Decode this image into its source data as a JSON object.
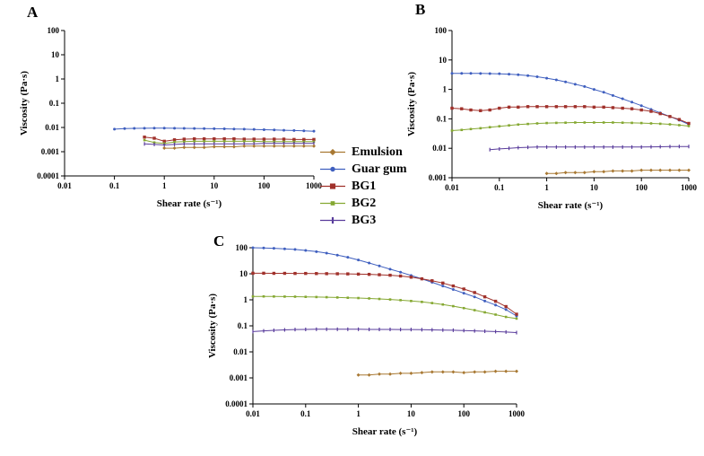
{
  "figure": {
    "background": "#ffffff",
    "panels": [
      {
        "label": "A"
      },
      {
        "label": "B"
      },
      {
        "label": "C"
      }
    ]
  },
  "legend": {
    "entries": [
      {
        "label": "Emulsion",
        "color": "#a87832",
        "marker": "diamond"
      },
      {
        "label": "Guar gum",
        "color": "#3f5fbf",
        "marker": "circle"
      },
      {
        "label": "BG1",
        "color": "#a0312b",
        "marker": "square"
      },
      {
        "label": "BG2",
        "color": "#85a832",
        "marker": "square-small"
      },
      {
        "label": "BG3",
        "color": "#5a3d9c",
        "marker": "dash"
      }
    ]
  },
  "chart_data": [
    {
      "type": "line",
      "panel": "A",
      "title": "",
      "xlabel": "Shear rate (s⁻¹)",
      "ylabel": "Viscosity (Pa·s)",
      "xscale": "log",
      "yscale": "log",
      "xlim": [
        0.01,
        1000
      ],
      "ylim": [
        0.0001,
        100
      ],
      "grid": false,
      "xticks": [
        0.01,
        0.1,
        1,
        10,
        100,
        1000
      ],
      "xtick_labels": [
        "0.01",
        "0.1",
        "1",
        "10",
        "100",
        "1000"
      ],
      "yticks": [
        0.0001,
        0.001,
        0.01,
        0.1,
        1,
        10,
        100
      ],
      "ytick_labels": [
        "0.0001",
        "0.001",
        "0.01",
        "0.1",
        "1",
        "10",
        "100"
      ],
      "series": [
        {
          "name": "Guar gum",
          "x": [
            0.1,
            0.16,
            0.25,
            0.4,
            0.63,
            1,
            1.6,
            2.5,
            4,
            6.3,
            10,
            16,
            25,
            40,
            63,
            100,
            160,
            250,
            400,
            630,
            1000
          ],
          "y": [
            0.0085,
            0.009,
            0.0092,
            0.0093,
            0.0094,
            0.0094,
            0.0093,
            0.0092,
            0.0091,
            0.009,
            0.0089,
            0.0088,
            0.0086,
            0.0085,
            0.0083,
            0.0081,
            0.0079,
            0.0077,
            0.0075,
            0.0073,
            0.007
          ]
        },
        {
          "name": "BG1",
          "x": [
            0.4,
            0.63,
            1,
            1.6,
            2.5,
            4,
            6.3,
            10,
            16,
            25,
            40,
            63,
            100,
            160,
            250,
            400,
            630,
            1000
          ],
          "y": [
            0.004,
            0.0036,
            0.0027,
            0.0031,
            0.0033,
            0.0034,
            0.0034,
            0.0034,
            0.0034,
            0.0034,
            0.0033,
            0.0033,
            0.0033,
            0.0033,
            0.0033,
            0.0032,
            0.0032,
            0.0032
          ]
        },
        {
          "name": "BG2",
          "x": [
            0.4,
            0.63,
            1,
            1.6,
            2.5,
            4,
            6.3,
            10,
            16,
            25,
            40,
            63,
            100,
            160,
            250,
            400,
            630,
            1000
          ],
          "y": [
            0.003,
            0.0024,
            0.0022,
            0.0025,
            0.0026,
            0.0027,
            0.0027,
            0.0027,
            0.0027,
            0.0027,
            0.0027,
            0.0027,
            0.0026,
            0.0026,
            0.0026,
            0.0026,
            0.0026,
            0.0026
          ]
        },
        {
          "name": "BG3",
          "x": [
            0.4,
            0.63,
            1,
            1.6,
            2.5,
            4,
            6.3,
            10,
            16,
            25,
            40,
            63,
            100,
            160,
            250,
            400,
            630,
            1000
          ],
          "y": [
            0.0021,
            0.002,
            0.0019,
            0.002,
            0.0021,
            0.0021,
            0.0021,
            0.0021,
            0.0021,
            0.0021,
            0.0021,
            0.0021,
            0.0022,
            0.0022,
            0.0022,
            0.0022,
            0.0022,
            0.0022
          ]
        },
        {
          "name": "Emulsion",
          "x": [
            1,
            1.6,
            2.5,
            4,
            6.3,
            10,
            16,
            25,
            40,
            63,
            100,
            160,
            250,
            400,
            630,
            1000
          ],
          "y": [
            0.0014,
            0.0014,
            0.0015,
            0.0015,
            0.0015,
            0.0016,
            0.0016,
            0.0016,
            0.0017,
            0.0017,
            0.0017,
            0.0017,
            0.0017,
            0.0017,
            0.0017,
            0.0017
          ]
        }
      ]
    },
    {
      "type": "line",
      "panel": "B",
      "title": "",
      "xlabel": "Shear rate (s⁻¹)",
      "ylabel": "Viscosity (Pa·s)",
      "xscale": "log",
      "yscale": "log",
      "xlim": [
        0.01,
        1000
      ],
      "ylim": [
        0.001,
        100
      ],
      "grid": false,
      "xticks": [
        0.01,
        0.1,
        1,
        10,
        100,
        1000
      ],
      "xtick_labels": [
        "0.01",
        "0.1",
        "1",
        "10",
        "100",
        "1000"
      ],
      "yticks": [
        0.001,
        0.01,
        0.1,
        1,
        10,
        100
      ],
      "ytick_labels": [
        "0.001",
        "0.01",
        "0.1",
        "1",
        "10",
        "100"
      ],
      "series": [
        {
          "name": "Guar gum",
          "x": [
            0.01,
            0.016,
            0.025,
            0.04,
            0.063,
            0.1,
            0.16,
            0.25,
            0.4,
            0.63,
            1,
            1.6,
            2.5,
            4,
            6.3,
            10,
            16,
            25,
            40,
            63,
            100,
            160,
            250,
            400,
            630,
            1000
          ],
          "y": [
            3.5,
            3.5,
            3.5,
            3.48,
            3.45,
            3.4,
            3.3,
            3.15,
            2.95,
            2.7,
            2.4,
            2.1,
            1.8,
            1.5,
            1.25,
            1.0,
            0.8,
            0.62,
            0.48,
            0.37,
            0.28,
            0.21,
            0.16,
            0.12,
            0.09,
            0.065
          ]
        },
        {
          "name": "BG1",
          "x": [
            0.01,
            0.016,
            0.025,
            0.04,
            0.063,
            0.1,
            0.16,
            0.25,
            0.4,
            0.63,
            1,
            1.6,
            2.5,
            4,
            6.3,
            10,
            16,
            25,
            40,
            63,
            100,
            160,
            250,
            400,
            630,
            1000
          ],
          "y": [
            0.23,
            0.22,
            0.2,
            0.19,
            0.2,
            0.23,
            0.25,
            0.25,
            0.26,
            0.26,
            0.26,
            0.26,
            0.26,
            0.26,
            0.26,
            0.25,
            0.25,
            0.24,
            0.23,
            0.22,
            0.2,
            0.18,
            0.15,
            0.12,
            0.095,
            0.07
          ]
        },
        {
          "name": "BG2",
          "x": [
            0.01,
            0.016,
            0.025,
            0.04,
            0.063,
            0.1,
            0.16,
            0.25,
            0.4,
            0.63,
            1,
            1.6,
            2.5,
            4,
            6.3,
            10,
            16,
            25,
            40,
            63,
            100,
            160,
            250,
            400,
            630,
            1000
          ],
          "y": [
            0.04,
            0.042,
            0.045,
            0.048,
            0.052,
            0.056,
            0.06,
            0.064,
            0.067,
            0.07,
            0.072,
            0.073,
            0.074,
            0.075,
            0.075,
            0.075,
            0.075,
            0.075,
            0.074,
            0.073,
            0.072,
            0.07,
            0.068,
            0.065,
            0.061,
            0.057
          ]
        },
        {
          "name": "BG3",
          "x": [
            0.063,
            0.1,
            0.16,
            0.25,
            0.4,
            0.63,
            1,
            1.6,
            2.5,
            4,
            6.3,
            10,
            16,
            25,
            40,
            63,
            100,
            160,
            250,
            400,
            630,
            1000
          ],
          "y": [
            0.009,
            0.0095,
            0.01,
            0.0105,
            0.0108,
            0.011,
            0.011,
            0.011,
            0.011,
            0.011,
            0.011,
            0.011,
            0.011,
            0.011,
            0.011,
            0.011,
            0.011,
            0.0112,
            0.0113,
            0.0114,
            0.0115,
            0.0115
          ]
        },
        {
          "name": "Emulsion",
          "x": [
            1,
            1.6,
            2.5,
            4,
            6.3,
            10,
            16,
            25,
            40,
            63,
            100,
            160,
            250,
            400,
            630,
            1000
          ],
          "y": [
            0.0014,
            0.0014,
            0.0015,
            0.0015,
            0.0015,
            0.0016,
            0.0016,
            0.0017,
            0.0017,
            0.0017,
            0.0018,
            0.0018,
            0.0018,
            0.0018,
            0.0018,
            0.0018
          ]
        }
      ]
    },
    {
      "type": "line",
      "panel": "C",
      "title": "",
      "xlabel": "Shear rate (s⁻¹)",
      "ylabel": "Viscosity (Pa·s)",
      "xscale": "log",
      "yscale": "log",
      "xlim": [
        0.01,
        1000
      ],
      "ylim": [
        0.0001,
        100
      ],
      "grid": false,
      "xticks": [
        0.01,
        0.1,
        1,
        10,
        100,
        1000
      ],
      "xtick_labels": [
        "0.01",
        "0.1",
        "1",
        "10",
        "100",
        "1000"
      ],
      "yticks": [
        0.0001,
        0.001,
        0.01,
        0.1,
        1,
        10,
        100
      ],
      "ytick_labels": [
        "0.0001",
        "0.001",
        "0.01",
        "0.1",
        "1",
        "10",
        "100"
      ],
      "series": [
        {
          "name": "Guar gum",
          "x": [
            0.01,
            0.016,
            0.025,
            0.04,
            0.063,
            0.1,
            0.16,
            0.25,
            0.4,
            0.63,
            1,
            1.6,
            2.5,
            4,
            6.3,
            10,
            16,
            25,
            40,
            63,
            100,
            160,
            250,
            400,
            630,
            1000
          ],
          "y": [
            100,
            98,
            95,
            91,
            86,
            79,
            71,
            62,
            52,
            43,
            34,
            26,
            20,
            15,
            11.5,
            8.6,
            6.4,
            4.7,
            3.4,
            2.5,
            1.8,
            1.3,
            0.9,
            0.63,
            0.42,
            0.24
          ]
        },
        {
          "name": "BG1",
          "x": [
            0.01,
            0.016,
            0.025,
            0.04,
            0.063,
            0.1,
            0.16,
            0.25,
            0.4,
            0.63,
            1,
            1.6,
            2.5,
            4,
            6.3,
            10,
            16,
            25,
            40,
            63,
            100,
            160,
            250,
            400,
            630,
            1000
          ],
          "y": [
            10.5,
            10.5,
            10.4,
            10.4,
            10.3,
            10.3,
            10.2,
            10.1,
            10,
            9.9,
            9.7,
            9.5,
            9.2,
            8.8,
            8.2,
            7.4,
            6.4,
            5.4,
            4.4,
            3.4,
            2.6,
            1.9,
            1.3,
            0.88,
            0.55,
            0.28
          ]
        },
        {
          "name": "BG2",
          "x": [
            0.01,
            0.016,
            0.025,
            0.04,
            0.063,
            0.1,
            0.16,
            0.25,
            0.4,
            0.63,
            1,
            1.6,
            2.5,
            4,
            6.3,
            10,
            16,
            25,
            40,
            63,
            100,
            160,
            250,
            400,
            630,
            1000
          ],
          "y": [
            1.35,
            1.35,
            1.34,
            1.33,
            1.32,
            1.3,
            1.28,
            1.26,
            1.23,
            1.2,
            1.17,
            1.13,
            1.08,
            1.03,
            0.97,
            0.9,
            0.83,
            0.75,
            0.66,
            0.57,
            0.48,
            0.4,
            0.33,
            0.27,
            0.22,
            0.19
          ]
        },
        {
          "name": "BG3",
          "x": [
            0.01,
            0.016,
            0.025,
            0.04,
            0.063,
            0.1,
            0.16,
            0.25,
            0.4,
            0.63,
            1,
            1.6,
            2.5,
            4,
            6.3,
            10,
            16,
            25,
            40,
            63,
            100,
            160,
            250,
            400,
            630,
            1000
          ],
          "y": [
            0.06,
            0.064,
            0.067,
            0.07,
            0.072,
            0.073,
            0.074,
            0.074,
            0.074,
            0.074,
            0.074,
            0.073,
            0.073,
            0.073,
            0.072,
            0.072,
            0.071,
            0.07,
            0.069,
            0.068,
            0.066,
            0.064,
            0.062,
            0.06,
            0.058,
            0.055
          ]
        },
        {
          "name": "Emulsion",
          "x": [
            1,
            1.6,
            2.5,
            4,
            6.3,
            10,
            16,
            25,
            40,
            63,
            100,
            160,
            250,
            400,
            630,
            1000
          ],
          "y": [
            0.0013,
            0.0013,
            0.0014,
            0.0014,
            0.0015,
            0.0015,
            0.0016,
            0.0017,
            0.0017,
            0.0017,
            0.0016,
            0.0017,
            0.0017,
            0.0018,
            0.0018,
            0.0018
          ]
        }
      ]
    }
  ]
}
